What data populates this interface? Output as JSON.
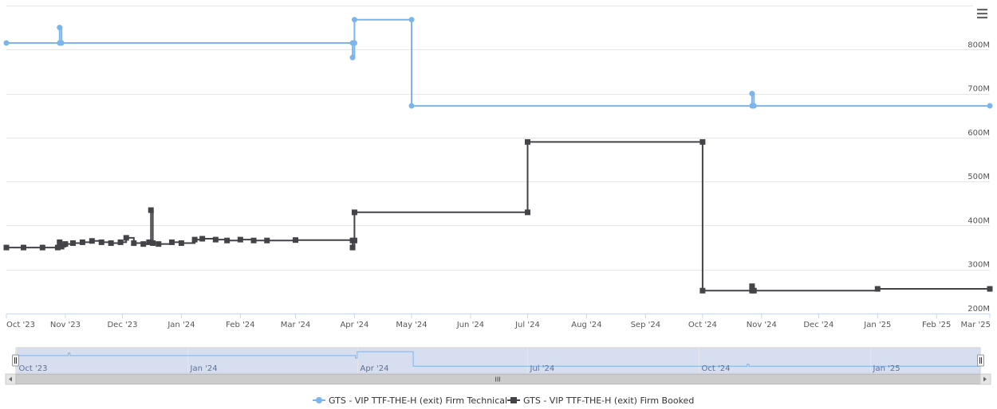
{
  "chart_data": {
    "type": "line",
    "step": true,
    "x_axis": {
      "type": "datetime",
      "range": [
        "2023-10-01",
        "2025-03-01"
      ],
      "tick_labels": [
        "Oct '23",
        "Nov '23",
        "Dec '23",
        "Jan '24",
        "Feb '24",
        "Mar '24",
        "Apr '24",
        "May '24",
        "Jun '24",
        "Jul '24",
        "Aug '24",
        "Sep '24",
        "Oct '24",
        "Nov '24",
        "Dec '24",
        "Jan '25",
        "Feb '25",
        "Mar '25"
      ]
    },
    "y_axis": {
      "position": "right",
      "ylim": [
        200000000,
        900000000
      ],
      "tick_values": [
        200000000,
        300000000,
        400000000,
        500000000,
        600000000,
        700000000,
        800000000
      ],
      "tick_labels": [
        "200M",
        "300M",
        "400M",
        "500M",
        "600M",
        "700M",
        "800M"
      ]
    },
    "grid": true,
    "legend_position": "bottom-center",
    "series": [
      {
        "name": "GTS - VIP TTF-THE-H (exit) Firm Technical",
        "color": "#7cb5ec",
        "marker": "circle",
        "points": [
          [
            "2023-10-01",
            815000000
          ],
          [
            "2023-10-29",
            815000000
          ],
          [
            "2023-10-29",
            850000000
          ],
          [
            "2023-10-30",
            815000000
          ],
          [
            "2024-03-31",
            815000000
          ],
          [
            "2024-03-31",
            782000000
          ],
          [
            "2024-04-01",
            815000000
          ],
          [
            "2024-04-01",
            868000000
          ],
          [
            "2024-05-01",
            868000000
          ],
          [
            "2024-05-01",
            672000000
          ],
          [
            "2024-10-27",
            672000000
          ],
          [
            "2024-10-27",
            700000000
          ],
          [
            "2024-10-28",
            672000000
          ],
          [
            "2025-03-01",
            672000000
          ]
        ]
      },
      {
        "name": "GTS - VIP TTF-THE-H (exit) Firm Booked",
        "color": "#434348",
        "marker": "square",
        "points": [
          [
            "2023-10-01",
            350000000
          ],
          [
            "2023-10-10",
            350000000
          ],
          [
            "2023-10-20",
            350000000
          ],
          [
            "2023-10-28",
            350000000
          ],
          [
            "2023-10-29",
            362000000
          ],
          [
            "2023-10-30",
            352000000
          ],
          [
            "2023-11-01",
            358000000
          ],
          [
            "2023-11-05",
            360000000
          ],
          [
            "2023-11-10",
            362000000
          ],
          [
            "2023-11-15",
            365000000
          ],
          [
            "2023-11-20",
            362000000
          ],
          [
            "2023-11-25",
            360000000
          ],
          [
            "2023-11-30",
            362000000
          ],
          [
            "2023-12-03",
            372000000
          ],
          [
            "2023-12-07",
            360000000
          ],
          [
            "2023-12-12",
            358000000
          ],
          [
            "2023-12-15",
            362000000
          ],
          [
            "2023-12-16",
            435000000
          ],
          [
            "2023-12-17",
            360000000
          ],
          [
            "2023-12-20",
            358000000
          ],
          [
            "2023-12-27",
            362000000
          ],
          [
            "2024-01-01",
            360000000
          ],
          [
            "2024-01-08",
            368000000
          ],
          [
            "2024-01-12",
            370000000
          ],
          [
            "2024-01-19",
            368000000
          ],
          [
            "2024-01-25",
            366000000
          ],
          [
            "2024-02-01",
            368000000
          ],
          [
            "2024-02-08",
            366000000
          ],
          [
            "2024-02-15",
            366000000
          ],
          [
            "2024-03-01",
            367000000
          ],
          [
            "2024-03-31",
            366000000
          ],
          [
            "2024-03-31",
            350000000
          ],
          [
            "2024-04-01",
            366000000
          ],
          [
            "2024-04-01",
            430000000
          ],
          [
            "2024-07-01",
            430000000
          ],
          [
            "2024-07-01",
            590000000
          ],
          [
            "2024-10-01",
            590000000
          ],
          [
            "2024-10-01",
            252000000
          ],
          [
            "2024-10-27",
            252000000
          ],
          [
            "2024-10-27",
            262000000
          ],
          [
            "2024-10-28",
            252000000
          ],
          [
            "2025-01-01",
            256000000
          ],
          [
            "2025-03-01",
            256000000
          ]
        ]
      }
    ],
    "navigator": {
      "tick_labels": [
        "Oct '23",
        "Jan '24",
        "Apr '24",
        "Jul '24",
        "Oct '24",
        "Jan '25"
      ],
      "selected_range": [
        "2023-10-01",
        "2025-03-01"
      ]
    }
  },
  "toolbar": {
    "menu_icon": "hamburger-menu-icon",
    "scrollbar_grip": "III"
  },
  "colors": {
    "technical": "#7cb5ec",
    "booked": "#434348",
    "navigator_fill": "#ccd6eb",
    "grid": "#e6e6e6"
  }
}
